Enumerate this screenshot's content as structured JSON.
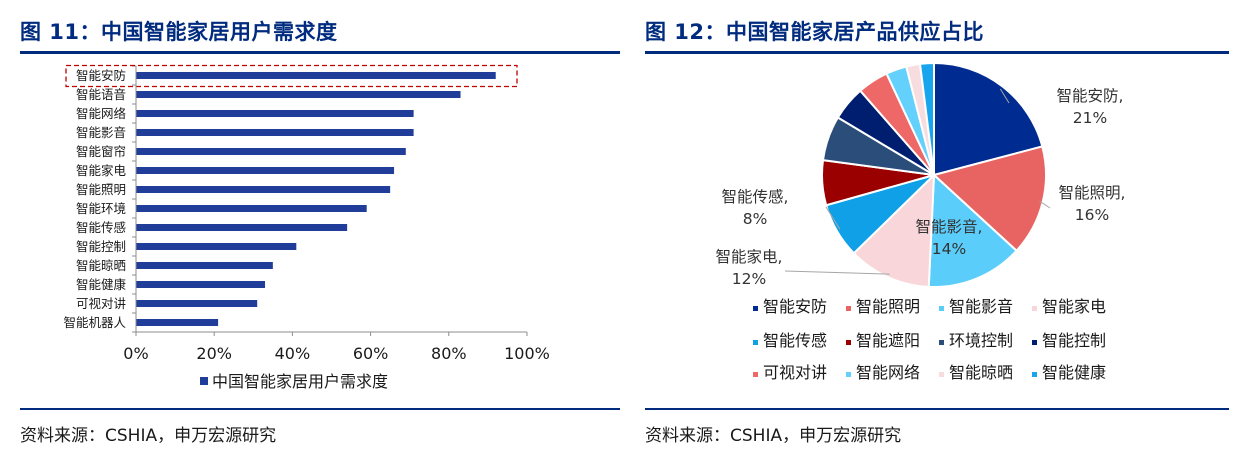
{
  "left": {
    "figure_title": "图 11：中国智能家居用户需求度",
    "source": "资料来源：CSHIA，申万宏源研究"
  },
  "right": {
    "figure_title": "图 12：中国智能家居产品供应占比",
    "source": "资料来源：CSHIA，申万宏源研究"
  },
  "colors": {
    "navy": "#002b7f",
    "bar": "#1f3d99",
    "highlight_box": "#c00000"
  },
  "chart_data": [
    {
      "type": "bar",
      "orientation": "horizontal",
      "title": "",
      "categories": [
        "智能安防",
        "智能语音",
        "智能网络",
        "智能影音",
        "智能窗帘",
        "智能家电",
        "智能照明",
        "智能环境",
        "智能传感",
        "智能控制",
        "智能晾晒",
        "智能健康",
        "可视对讲",
        "智能机器人"
      ],
      "series": [
        {
          "name": "中国智能家居用户需求度",
          "values": [
            0.92,
            0.83,
            0.71,
            0.71,
            0.69,
            0.66,
            0.65,
            0.59,
            0.54,
            0.41,
            0.35,
            0.33,
            0.31,
            0.21
          ]
        }
      ],
      "xlim": [
        0,
        1
      ],
      "xticks": [
        "0%",
        "20%",
        "40%",
        "60%",
        "80%",
        "100%"
      ],
      "xtick_values": [
        0,
        0.2,
        0.4,
        0.6,
        0.8,
        1.0
      ],
      "legend": "bottom",
      "highlighted_category": "智能安防",
      "grid": false
    },
    {
      "type": "pie",
      "title": "",
      "labels": [
        "智能安防",
        "智能照明",
        "智能影音",
        "智能家电",
        "智能传感",
        "智能遮阳",
        "环境控制",
        "智能控制",
        "可视对讲",
        "智能网络",
        "智能晾晒",
        "智能健康"
      ],
      "values": [
        0.21,
        0.16,
        0.14,
        0.12,
        0.08,
        0.065,
        0.065,
        0.05,
        0.045,
        0.03,
        0.02,
        0.02
      ],
      "colors": [
        "#002b90",
        "#e86462",
        "#5bcdfb",
        "#f8d6d9",
        "#0fa0e8",
        "#9a0000",
        "#2b4d7a",
        "#001e70",
        "#ef6868",
        "#64d1fd",
        "#f8dde0",
        "#18a5ee"
      ],
      "data_labels": [
        {
          "name": "智能安防,",
          "pct": "21%"
        },
        {
          "name": "智能照明,",
          "pct": "16%"
        },
        {
          "name": "智能影音,",
          "pct": "14%"
        },
        {
          "name": "智能家电,",
          "pct": "12%"
        },
        {
          "name": "智能传感,",
          "pct": "8%"
        }
      ],
      "legend": "bottom",
      "legend_rows": [
        [
          "智能安防",
          "智能照明",
          "智能影音",
          "智能家电"
        ],
        [
          "智能传感",
          "智能遮阳",
          "环境控制",
          "智能控制"
        ],
        [
          "可视对讲",
          "智能网络",
          "智能晾晒",
          "智能健康"
        ]
      ]
    }
  ]
}
